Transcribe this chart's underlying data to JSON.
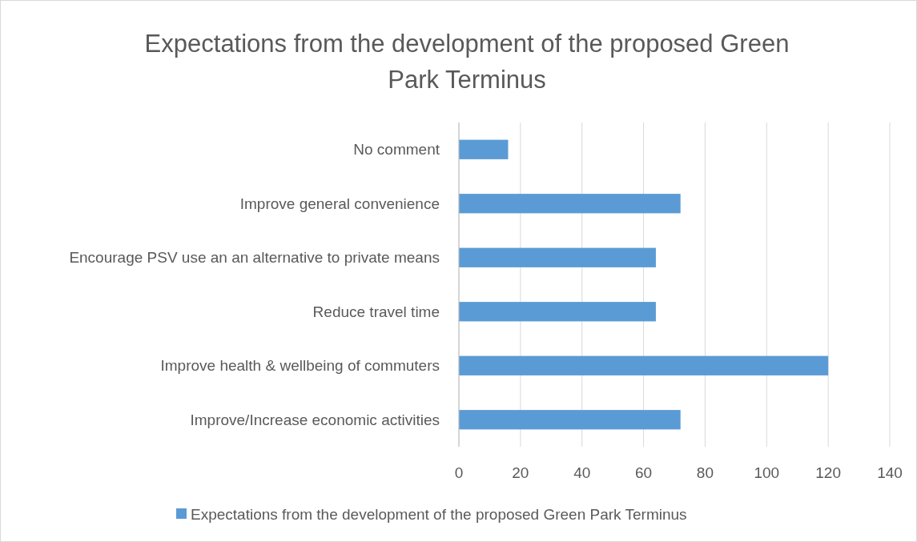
{
  "chart_data": {
    "type": "bar",
    "orientation": "horizontal",
    "title": "Expectations from the development of the proposed Green Park Terminus",
    "categories": [
      "No comment",
      "Improve general convenience",
      "Encourage PSV use an an alternative to private means",
      "Reduce travel time",
      "Improve health & wellbeing of commuters",
      "Improve/Increase economic activities"
    ],
    "series": [
      {
        "name": "Expectations from the development of the proposed Green Park Terminus",
        "color": "#5b9bd5",
        "values": [
          16,
          72,
          64,
          64,
          120,
          72
        ]
      }
    ],
    "xlim": [
      0,
      140
    ],
    "xticks": [
      0,
      20,
      40,
      60,
      80,
      100,
      120,
      140
    ],
    "grid": "x",
    "legend": "bottom"
  }
}
